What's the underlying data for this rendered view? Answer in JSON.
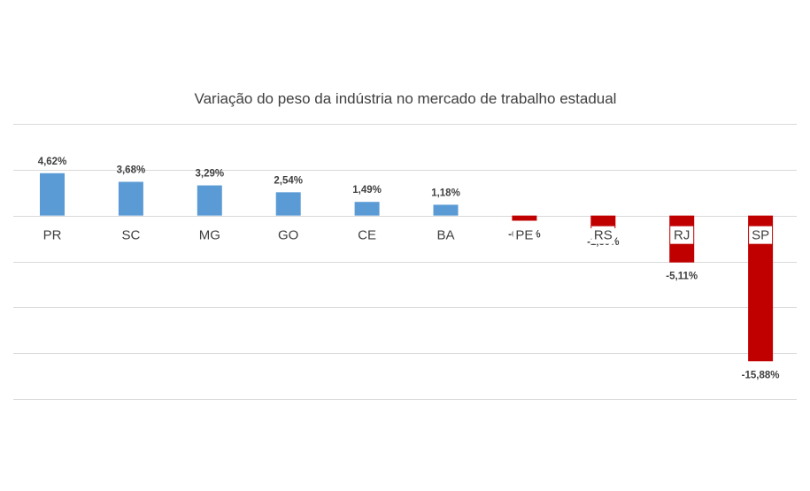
{
  "chart_data": {
    "type": "bar",
    "title": "Variação  do peso da indústria no mercado de trabalho estadual",
    "categories": [
      "PR",
      "SC",
      "MG",
      "GO",
      "CE",
      "BA",
      "PE",
      "RS",
      "RJ",
      "SP"
    ],
    "values": [
      4.62,
      3.68,
      3.29,
      2.54,
      1.49,
      1.18,
      -0.56,
      -1.39,
      -5.11,
      -15.88
    ],
    "value_labels": [
      "4,62%",
      "3,68%",
      "3,29%",
      "2,54%",
      "1,49%",
      "1,18%",
      "-0,56%",
      "-1,39%",
      "-5,11%",
      "-15,88%"
    ],
    "ylim": [
      -20,
      10
    ],
    "grid": true,
    "legend": "none",
    "colors": {
      "positive": "#5b9bd5",
      "negative": "#c00000",
      "grid": "#d9d9d9",
      "text": "#404040"
    }
  }
}
